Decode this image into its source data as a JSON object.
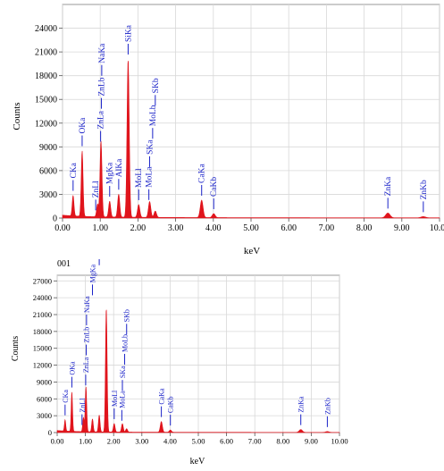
{
  "chart_data": [
    {
      "type": "area",
      "title": "",
      "xlabel": "keV",
      "ylabel": "Counts",
      "xlim": [
        0,
        10
      ],
      "ylim": [
        0,
        27000
      ],
      "xticks": [
        0,
        1,
        2,
        3,
        4,
        5,
        6,
        7,
        8,
        9,
        10
      ],
      "xtick_labels": [
        "0.00",
        "1.00",
        "2.00",
        "3.00",
        "4.00",
        "5.00",
        "6.00",
        "7.00",
        "8.00",
        "9.00",
        "10.00"
      ],
      "yticks": [
        0,
        3000,
        6000,
        9000,
        12000,
        15000,
        18000,
        21000,
        24000
      ],
      "ytick_labels": [
        "0",
        "3000",
        "6000",
        "9000",
        "12000",
        "15000",
        "18000",
        "21000",
        "24000"
      ],
      "grid": true,
      "spectrum_color": "#e0141c",
      "label_color": "#1a22c8",
      "spectrum_peaks": [
        {
          "x": 0.28,
          "y": 2600
        },
        {
          "x": 0.52,
          "y": 8300
        },
        {
          "x": 0.93,
          "y": 1600
        },
        {
          "x": 1.02,
          "y": 9600
        },
        {
          "x": 1.25,
          "y": 2000
        },
        {
          "x": 1.49,
          "y": 2900
        },
        {
          "x": 1.74,
          "y": 20000
        },
        {
          "x": 2.02,
          "y": 1600
        },
        {
          "x": 2.31,
          "y": 2000
        },
        {
          "x": 2.46,
          "y": 800
        },
        {
          "x": 3.69,
          "y": 2200
        },
        {
          "x": 4.01,
          "y": 500
        },
        {
          "x": 8.63,
          "y": 600
        },
        {
          "x": 9.57,
          "y": 150
        }
      ],
      "peak_labels": [
        {
          "label": "CKa",
          "x": 0.28
        },
        {
          "label": "OKa",
          "x": 0.52
        },
        {
          "label": "ZnLl",
          "x": 0.88
        },
        {
          "label": "NaKa",
          "x": 1.04
        },
        {
          "label": "ZnLa",
          "x": 1.01
        },
        {
          "label": "ZnLb",
          "x": 1.03
        },
        {
          "label": "MgKa",
          "x": 1.25
        },
        {
          "label": "AlKa",
          "x": 1.49
        },
        {
          "label": "SiKa",
          "x": 1.74
        },
        {
          "label": "MoLl",
          "x": 2.02
        },
        {
          "label": "MoLa",
          "x": 2.29
        },
        {
          "label": "MoLb",
          "x": 2.39
        },
        {
          "label": "SKa",
          "x": 2.31
        },
        {
          "label": "SKb",
          "x": 2.46
        },
        {
          "label": "CaKa",
          "x": 3.69
        },
        {
          "label": "CaKb",
          "x": 4.01
        },
        {
          "label": "ZnKa",
          "x": 8.63
        },
        {
          "label": "ZnKb",
          "x": 9.57
        }
      ]
    },
    {
      "type": "area",
      "title": "001",
      "xlabel": "keV",
      "ylabel": "Counts",
      "xlim": [
        0,
        10
      ],
      "ylim": [
        0,
        28000
      ],
      "xticks": [
        0,
        1,
        2,
        3,
        4,
        5,
        6,
        7,
        8,
        9,
        10
      ],
      "xtick_labels": [
        "0.00",
        "1.00",
        "2.00",
        "3.00",
        "4.00",
        "5.00",
        "6.00",
        "7.00",
        "8.00",
        "9.00",
        "10.00"
      ],
      "yticks": [
        0,
        3000,
        6000,
        9000,
        12000,
        15000,
        18000,
        21000,
        24000,
        27000
      ],
      "ytick_labels": [
        "0",
        "3000",
        "6000",
        "9000",
        "12000",
        "15000",
        "18000",
        "21000",
        "24000",
        "27000"
      ],
      "grid": true,
      "spectrum_color": "#e0141c",
      "label_color": "#1a22c8",
      "spectrum_peaks": [
        {
          "x": 0.28,
          "y": 2000
        },
        {
          "x": 0.52,
          "y": 7000
        },
        {
          "x": 0.93,
          "y": 2500
        },
        {
          "x": 1.02,
          "y": 8000
        },
        {
          "x": 1.25,
          "y": 2300
        },
        {
          "x": 1.49,
          "y": 3000
        },
        {
          "x": 1.74,
          "y": 22000
        },
        {
          "x": 2.02,
          "y": 1500
        },
        {
          "x": 2.31,
          "y": 1500
        },
        {
          "x": 2.46,
          "y": 600
        },
        {
          "x": 3.69,
          "y": 1900
        },
        {
          "x": 4.01,
          "y": 400
        },
        {
          "x": 8.63,
          "y": 500
        },
        {
          "x": 9.57,
          "y": 150
        }
      ],
      "peak_labels": [
        {
          "label": "CKa",
          "x": 0.28
        },
        {
          "label": "OKa",
          "x": 0.52
        },
        {
          "label": "ZnLl",
          "x": 0.88
        },
        {
          "label": "NaKa",
          "x": 1.04
        },
        {
          "label": "ZnLa",
          "x": 1.01
        },
        {
          "label": "ZnLb",
          "x": 1.03
        },
        {
          "label": "MgKa",
          "x": 1.25
        },
        {
          "label": "AlKa",
          "x": 1.49
        },
        {
          "label": "SiKa",
          "x": 1.74
        },
        {
          "label": "MoLl",
          "x": 2.02
        },
        {
          "label": "MoLa",
          "x": 2.29
        },
        {
          "label": "MoLb",
          "x": 2.39
        },
        {
          "label": "SKa",
          "x": 2.31
        },
        {
          "label": "SKb",
          "x": 2.46
        },
        {
          "label": "CaKa",
          "x": 3.69
        },
        {
          "label": "CaKb",
          "x": 4.01
        },
        {
          "label": "ZnKa",
          "x": 8.63
        },
        {
          "label": "ZnKb",
          "x": 9.57
        }
      ]
    }
  ]
}
